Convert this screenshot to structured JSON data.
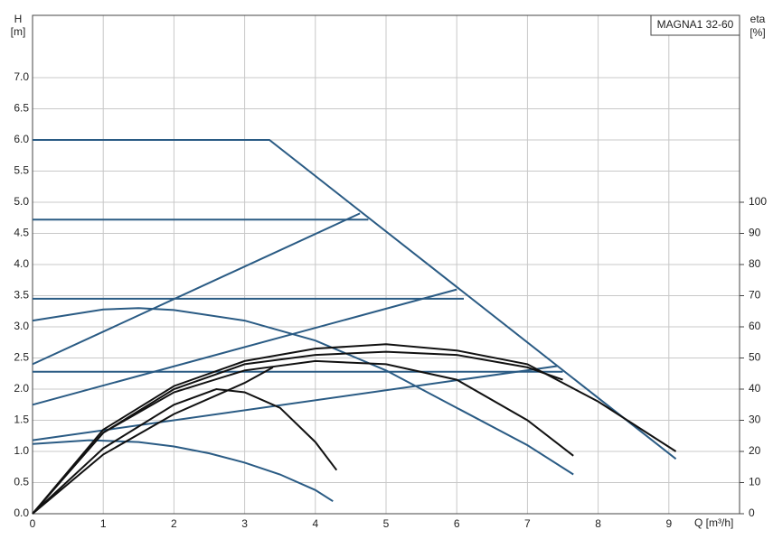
{
  "chart_data": {
    "type": "line",
    "title": "MAGNA1 32-60",
    "y_label": "H",
    "y_unit": "[m]",
    "y2_label": "eta",
    "y2_unit": "[%]",
    "x_label": "Q [m³/h]",
    "xlim": [
      0,
      10
    ],
    "ylim": [
      0,
      8
    ],
    "y2lim": [
      0,
      160
    ],
    "xticks": [
      0,
      1,
      2,
      3,
      4,
      5,
      6,
      7,
      8,
      9
    ],
    "yticks": [
      {
        "value": 0,
        "label": "0.0"
      },
      0.5,
      {
        "value": 1,
        "label": "1.0"
      },
      1.5,
      {
        "value": 2,
        "label": "2.0"
      },
      2.5,
      {
        "value": 3,
        "label": "3.0"
      },
      3.5,
      {
        "value": 4,
        "label": "4.0"
      },
      4.5,
      {
        "value": 5,
        "label": "5.0"
      },
      5.5,
      {
        "value": 6,
        "label": "6.0"
      },
      6.5,
      {
        "value": 7,
        "label": "7.0"
      }
    ],
    "y2ticks": [
      0,
      10,
      20,
      30,
      40,
      50,
      60,
      70,
      80,
      90,
      100
    ],
    "grid": true,
    "series": [
      {
        "color": "#2a5b84",
        "x": [
          0,
          3.35,
          9.1
        ],
        "values": [
          6.0,
          6.0,
          0.88
        ]
      },
      {
        "color": "#2a5b84",
        "x": [
          0,
          4.75
        ],
        "values": [
          4.72,
          4.72
        ]
      },
      {
        "color": "#2a5b84",
        "x": [
          0,
          4.63
        ],
        "values": [
          2.4,
          4.82
        ]
      },
      {
        "color": "#2a5b84",
        "x": [
          0,
          6.1
        ],
        "values": [
          3.45,
          3.45
        ]
      },
      {
        "color": "#2a5b84",
        "x": [
          0,
          6.0
        ],
        "values": [
          1.75,
          3.6
        ]
      },
      {
        "color": "#2a5b84",
        "x": [
          0,
          7.5
        ],
        "values": [
          2.28,
          2.28
        ]
      },
      {
        "color": "#2a5b84",
        "x": [
          0,
          7.42
        ],
        "values": [
          1.18,
          2.37
        ]
      },
      {
        "color": "#2a5b84",
        "x": [
          0,
          1,
          1.5,
          2,
          3,
          4,
          5,
          6,
          7,
          7.65
        ],
        "values": [
          3.1,
          3.28,
          3.3,
          3.27,
          3.1,
          2.78,
          2.3,
          1.7,
          1.1,
          0.63
        ]
      },
      {
        "color": "#2a5b84",
        "x": [
          0,
          0.8,
          1.5,
          2,
          2.5,
          3,
          3.5,
          4,
          4.25
        ],
        "values": [
          1.12,
          1.18,
          1.15,
          1.08,
          0.97,
          0.82,
          0.63,
          0.38,
          0.2
        ]
      },
      {
        "color": "#111111",
        "axis": "y2",
        "x": [
          0,
          1,
          2,
          3,
          4,
          5,
          6,
          7,
          8,
          9.1
        ],
        "values": [
          0,
          27,
          41,
          49,
          53,
          54.4,
          52.4,
          48,
          36,
          20
        ]
      },
      {
        "color": "#111111",
        "axis": "y2",
        "x": [
          0,
          1,
          2,
          3,
          4,
          5,
          6,
          7,
          7.65
        ],
        "values": [
          0,
          26,
          39,
          46,
          49,
          48,
          43,
          30,
          18.6
        ]
      },
      {
        "color": "#111111",
        "axis": "y2",
        "x": [
          0,
          1,
          2,
          2.6,
          3,
          3.5,
          4,
          4.3
        ],
        "values": [
          0,
          21,
          35,
          40,
          39,
          34,
          23,
          14
        ]
      },
      {
        "color": "#111111",
        "axis": "y2",
        "x": [
          0,
          1,
          2,
          3,
          4,
          5,
          6,
          7,
          7.5
        ],
        "values": [
          0,
          26,
          40,
          48,
          51,
          52,
          51,
          47,
          43
        ]
      },
      {
        "color": "#111111",
        "axis": "y2",
        "x": [
          0,
          1,
          2,
          3,
          3.4
        ],
        "values": [
          0,
          19,
          32,
          42,
          47
        ]
      }
    ]
  }
}
